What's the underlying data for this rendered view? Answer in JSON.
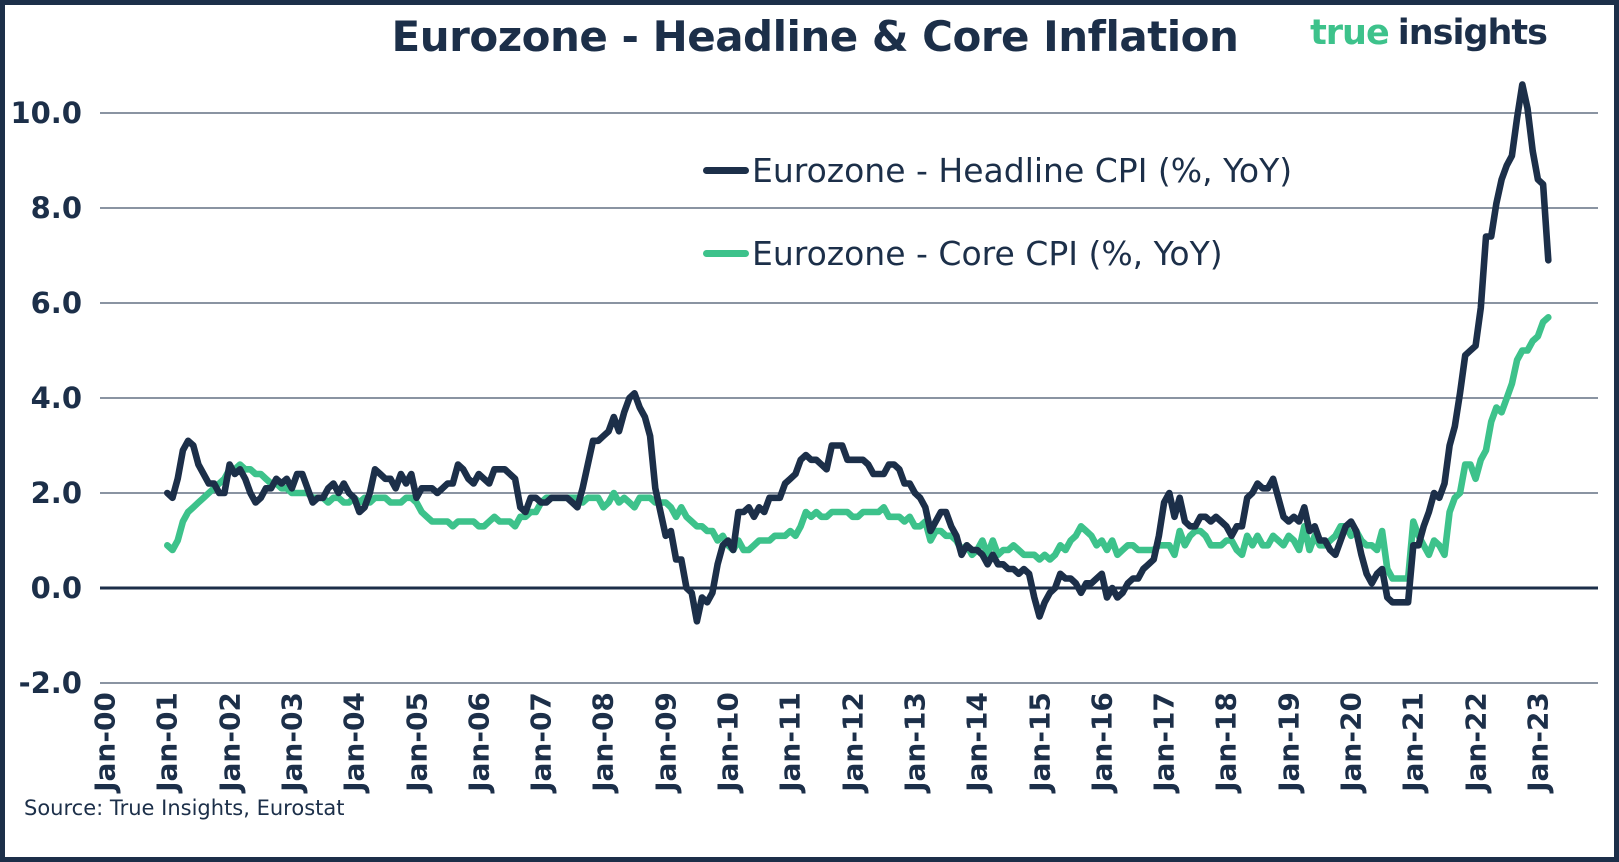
{
  "header": {
    "title": "Eurozone - Headline & Core Inflation"
  },
  "brand": {
    "word_true": "true",
    "word_insights": "insights",
    "green": "#3dc28b",
    "navy": "#1c2f49"
  },
  "legend": {
    "items": [
      {
        "label": "Eurozone - Headline CPI (%, YoY)",
        "color": "#1c2f49"
      },
      {
        "label": "Eurozone - Core CPI (%, YoY)",
        "color": "#3dc28b"
      }
    ]
  },
  "footer": {
    "source": "Source: True Insights, Eurostat"
  },
  "chart_data": {
    "type": "line",
    "title": "Eurozone - Headline & Core Inflation",
    "grid": "horizontal-only",
    "legend_position": "upper-center",
    "x_axis": {
      "tick_labels": [
        "Jan-00",
        "Jan-01",
        "Jan-02",
        "Jan-03",
        "Jan-04",
        "Jan-05",
        "Jan-06",
        "Jan-07",
        "Jan-08",
        "Jan-09",
        "Jan-10",
        "Jan-11",
        "Jan-12",
        "Jan-13",
        "Jan-14",
        "Jan-15",
        "Jan-16",
        "Jan-17",
        "Jan-18",
        "Jan-19",
        "Jan-20",
        "Jan-21",
        "Jan-22",
        "Jan-23"
      ],
      "frequency": "monthly",
      "data_start": "2001-01",
      "data_end": "2023-03"
    },
    "y_axis": {
      "range": [
        -2.0,
        10.0
      ],
      "tick_interval": 2.0,
      "ticks": [
        {
          "value": 10.0,
          "label": "10.0"
        },
        {
          "value": 8.0,
          "label": "8.0"
        },
        {
          "value": 6.0,
          "label": "6.0"
        },
        {
          "value": 4.0,
          "label": "4.0"
        },
        {
          "value": 2.0,
          "label": "2.0"
        },
        {
          "value": 0.0,
          "label": "0.0"
        },
        {
          "value": -2.0,
          "label": "-2.0"
        }
      ]
    },
    "series": [
      {
        "name": "Eurozone - Headline CPI (%, YoY)",
        "color": "#1c2f49",
        "start_month": "2001-01",
        "values": [
          2.0,
          1.9,
          2.3,
          2.9,
          3.1,
          3.0,
          2.6,
          2.4,
          2.2,
          2.2,
          2.0,
          2.0,
          2.6,
          2.4,
          2.5,
          2.3,
          2.0,
          1.8,
          1.9,
          2.1,
          2.1,
          2.3,
          2.2,
          2.3,
          2.1,
          2.4,
          2.4,
          2.1,
          1.8,
          1.9,
          1.9,
          2.1,
          2.2,
          2.0,
          2.2,
          2.0,
          1.9,
          1.6,
          1.7,
          2.0,
          2.5,
          2.4,
          2.3,
          2.3,
          2.1,
          2.4,
          2.2,
          2.4,
          1.9,
          2.1,
          2.1,
          2.1,
          2.0,
          2.1,
          2.2,
          2.2,
          2.6,
          2.5,
          2.3,
          2.2,
          2.4,
          2.3,
          2.2,
          2.5,
          2.5,
          2.5,
          2.4,
          2.3,
          1.7,
          1.6,
          1.9,
          1.9,
          1.8,
          1.8,
          1.9,
          1.9,
          1.9,
          1.9,
          1.8,
          1.7,
          2.1,
          2.6,
          3.1,
          3.1,
          3.2,
          3.3,
          3.6,
          3.3,
          3.7,
          4.0,
          4.1,
          3.8,
          3.6,
          3.2,
          2.1,
          1.6,
          1.1,
          1.2,
          0.6,
          0.6,
          0.0,
          -0.1,
          -0.7,
          -0.2,
          -0.3,
          -0.1,
          0.5,
          0.9,
          1.0,
          0.8,
          1.6,
          1.6,
          1.7,
          1.5,
          1.7,
          1.6,
          1.9,
          1.9,
          1.9,
          2.2,
          2.3,
          2.4,
          2.7,
          2.8,
          2.7,
          2.7,
          2.6,
          2.5,
          3.0,
          3.0,
          3.0,
          2.7,
          2.7,
          2.7,
          2.7,
          2.6,
          2.4,
          2.4,
          2.4,
          2.6,
          2.6,
          2.5,
          2.2,
          2.2,
          2.0,
          1.9,
          1.7,
          1.2,
          1.4,
          1.6,
          1.6,
          1.3,
          1.1,
          0.7,
          0.9,
          0.8,
          0.8,
          0.7,
          0.5,
          0.7,
          0.5,
          0.5,
          0.4,
          0.4,
          0.3,
          0.4,
          0.3,
          -0.2,
          -0.6,
          -0.3,
          -0.1,
          0.0,
          0.3,
          0.2,
          0.2,
          0.1,
          -0.1,
          0.1,
          0.1,
          0.2,
          0.3,
          -0.2,
          0.0,
          -0.2,
          -0.1,
          0.1,
          0.2,
          0.2,
          0.4,
          0.5,
          0.6,
          1.1,
          1.8,
          2.0,
          1.5,
          1.9,
          1.4,
          1.3,
          1.3,
          1.5,
          1.5,
          1.4,
          1.5,
          1.4,
          1.3,
          1.1,
          1.3,
          1.3,
          1.9,
          2.0,
          2.2,
          2.1,
          2.1,
          2.3,
          1.9,
          1.5,
          1.4,
          1.5,
          1.4,
          1.7,
          1.2,
          1.3,
          1.0,
          1.0,
          0.8,
          0.7,
          1.0,
          1.3,
          1.4,
          1.2,
          0.7,
          0.3,
          0.1,
          0.3,
          0.4,
          -0.2,
          -0.3,
          -0.3,
          -0.3,
          -0.3,
          0.9,
          0.9,
          1.3,
          1.6,
          2.0,
          1.9,
          2.2,
          3.0,
          3.4,
          4.1,
          4.9,
          5.0,
          5.1,
          5.9,
          7.4,
          7.4,
          8.1,
          8.6,
          8.9,
          9.1,
          9.9,
          10.6,
          10.1,
          9.2,
          8.6,
          8.5,
          6.9
        ]
      },
      {
        "name": "Eurozone - Core CPI (%, YoY)",
        "color": "#3dc28b",
        "start_month": "2001-01",
        "values": [
          0.9,
          0.8,
          1.0,
          1.4,
          1.6,
          1.7,
          1.8,
          1.9,
          2.0,
          2.1,
          2.2,
          2.3,
          2.5,
          2.5,
          2.6,
          2.5,
          2.5,
          2.4,
          2.4,
          2.3,
          2.2,
          2.2,
          2.1,
          2.1,
          2.0,
          2.0,
          2.0,
          2.0,
          1.9,
          1.9,
          1.9,
          1.8,
          1.9,
          1.9,
          1.8,
          1.8,
          1.9,
          1.8,
          1.9,
          1.8,
          1.9,
          1.9,
          1.9,
          1.8,
          1.8,
          1.8,
          1.9,
          1.9,
          1.8,
          1.6,
          1.5,
          1.4,
          1.4,
          1.4,
          1.4,
          1.3,
          1.4,
          1.4,
          1.4,
          1.4,
          1.3,
          1.3,
          1.4,
          1.5,
          1.4,
          1.4,
          1.4,
          1.3,
          1.5,
          1.5,
          1.6,
          1.6,
          1.8,
          1.9,
          1.9,
          1.9,
          1.9,
          1.9,
          1.9,
          1.9,
          1.8,
          1.9,
          1.9,
          1.9,
          1.7,
          1.8,
          2.0,
          1.8,
          1.9,
          1.8,
          1.7,
          1.9,
          1.9,
          1.9,
          1.8,
          1.8,
          1.8,
          1.7,
          1.5,
          1.7,
          1.5,
          1.4,
          1.3,
          1.3,
          1.2,
          1.2,
          1.0,
          1.1,
          0.9,
          0.8,
          1.0,
          0.8,
          0.8,
          0.9,
          1.0,
          1.0,
          1.0,
          1.1,
          1.1,
          1.1,
          1.2,
          1.1,
          1.3,
          1.6,
          1.5,
          1.6,
          1.5,
          1.5,
          1.6,
          1.6,
          1.6,
          1.6,
          1.5,
          1.5,
          1.6,
          1.6,
          1.6,
          1.6,
          1.7,
          1.5,
          1.5,
          1.5,
          1.4,
          1.5,
          1.3,
          1.3,
          1.4,
          1.0,
          1.2,
          1.2,
          1.1,
          1.1,
          1.0,
          0.8,
          0.9,
          0.7,
          0.8,
          1.0,
          0.7,
          1.0,
          0.7,
          0.8,
          0.8,
          0.9,
          0.8,
          0.7,
          0.7,
          0.7,
          0.6,
          0.7,
          0.6,
          0.7,
          0.9,
          0.8,
          1.0,
          1.1,
          1.3,
          1.2,
          1.1,
          0.9,
          1.0,
          0.8,
          1.0,
          0.7,
          0.8,
          0.9,
          0.9,
          0.8,
          0.8,
          0.8,
          0.8,
          0.9,
          0.9,
          0.9,
          0.7,
          1.2,
          0.9,
          1.1,
          1.2,
          1.2,
          1.1,
          0.9,
          0.9,
          0.9,
          1.0,
          1.0,
          0.8,
          0.7,
          1.1,
          0.9,
          1.1,
          0.9,
          0.9,
          1.1,
          1.0,
          0.9,
          1.1,
          1.0,
          0.8,
          1.3,
          0.8,
          1.1,
          0.9,
          0.9,
          1.0,
          1.1,
          1.3,
          1.3,
          1.1,
          1.2,
          1.0,
          0.9,
          0.9,
          0.8,
          1.2,
          0.4,
          0.2,
          0.2,
          0.2,
          0.2,
          1.4,
          1.1,
          0.9,
          0.7,
          1.0,
          0.9,
          0.7,
          1.6,
          1.9,
          2.0,
          2.6,
          2.6,
          2.3,
          2.7,
          2.9,
          3.5,
          3.8,
          3.7,
          4.0,
          4.3,
          4.8,
          5.0,
          5.0,
          5.2,
          5.3,
          5.6,
          5.7
        ]
      }
    ]
  }
}
